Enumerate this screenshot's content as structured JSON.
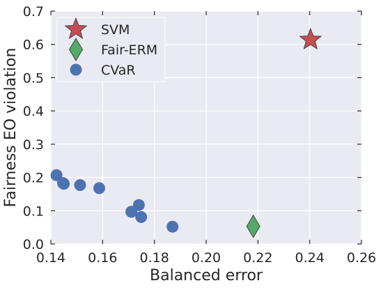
{
  "chart_data": {
    "type": "scatter",
    "title": "",
    "xlabel": "Balanced error",
    "ylabel": "Fairness EO violation",
    "xlim": [
      0.14,
      0.26
    ],
    "ylim": [
      0.0,
      0.7
    ],
    "xticks": [
      "0.14",
      "0.16",
      "0.18",
      "0.20",
      "0.22",
      "0.24",
      "0.26"
    ],
    "yticks": [
      "0.0",
      "0.1",
      "0.2",
      "0.3",
      "0.4",
      "0.5",
      "0.6",
      "0.7"
    ],
    "grid": true,
    "legend_position": "top-left",
    "series": [
      {
        "name": "SVM",
        "marker": "star",
        "color": "#c44e52",
        "points": [
          {
            "x": 0.2403,
            "y": 0.614
          }
        ]
      },
      {
        "name": "Fair-ERM",
        "marker": "diamond",
        "color": "#55a868",
        "points": [
          {
            "x": 0.2182,
            "y": 0.053
          }
        ]
      },
      {
        "name": "CVaR",
        "marker": "circle",
        "color": "#4c72b0",
        "points": [
          {
            "x": 0.1422,
            "y": 0.207
          },
          {
            "x": 0.1447,
            "y": 0.183
          },
          {
            "x": 0.145,
            "y": 0.181
          },
          {
            "x": 0.1513,
            "y": 0.177
          },
          {
            "x": 0.1587,
            "y": 0.168
          },
          {
            "x": 0.1711,
            "y": 0.097
          },
          {
            "x": 0.174,
            "y": 0.117
          },
          {
            "x": 0.1749,
            "y": 0.081
          },
          {
            "x": 0.187,
            "y": 0.052
          }
        ]
      }
    ]
  }
}
